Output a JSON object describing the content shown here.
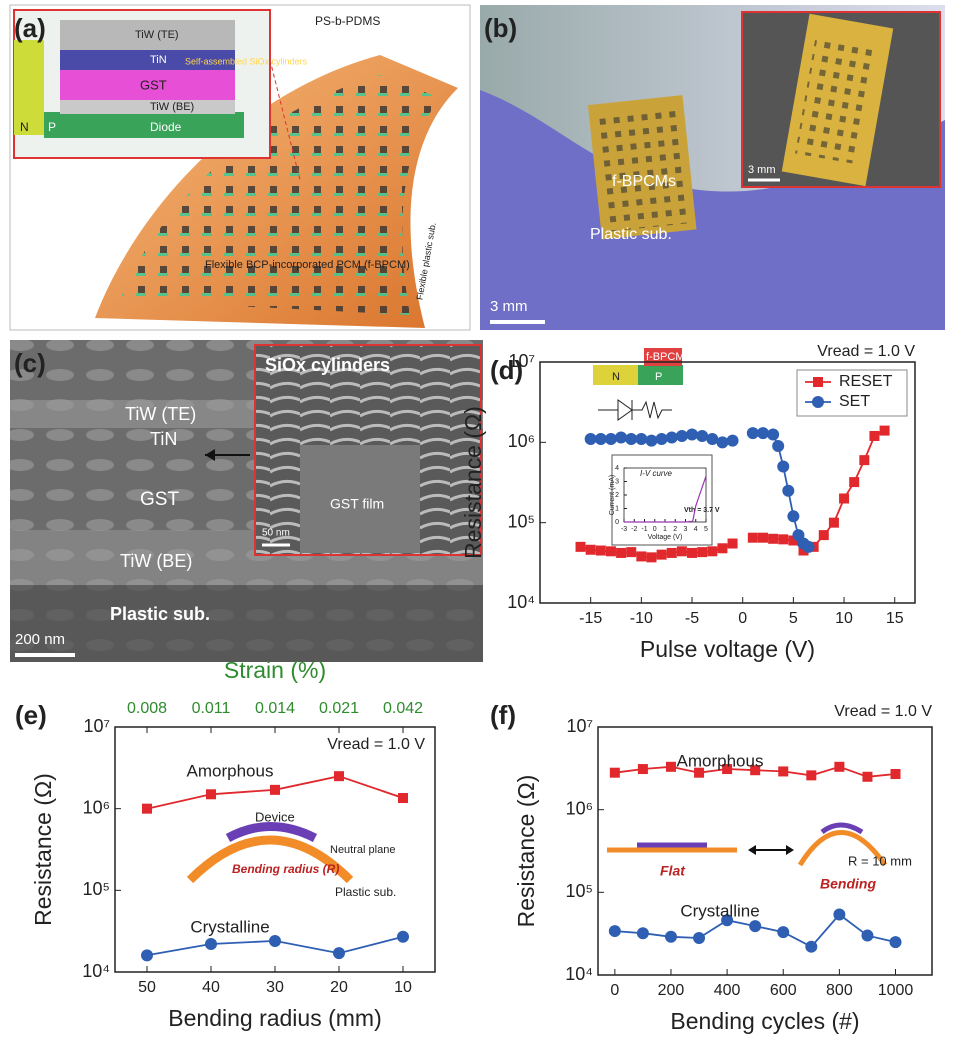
{
  "figure": {
    "a": {
      "label": "(a)",
      "polymer": "PS-b-PDMS",
      "layers": [
        "TiW (TE)",
        "TiN",
        "GST",
        "TiW (BE)",
        "Diode"
      ],
      "cylinders": "Self-assembled SiOx cylinders",
      "n": "N",
      "p": "P",
      "device": "Flexible BCP-incorporated PCM (f-BPCM)",
      "substrate": "Flexible plastic sub."
    },
    "b": {
      "label": "(b)",
      "device": "f-BPCMs",
      "substrate": "Plastic sub.",
      "scale": "3 mm",
      "inset_scale": "3 mm"
    },
    "c": {
      "label": "(c)",
      "inset_title": "SiOx cylinders",
      "layers": [
        "TiW (TE)",
        "TiN",
        "GST",
        "TiW (BE)",
        "Plastic sub."
      ],
      "scale": "200 nm",
      "inset_label": "GST film",
      "inset_scale": "50 nm"
    }
  },
  "chart_data": [
    {
      "type": "line",
      "panel_label": "(d)",
      "xlabel": "Pulse voltage (V)",
      "ylabel": "Resistance (Ω)",
      "condition": "Vread = 1.0 V",
      "scale": "log",
      "legend": "upper right",
      "xlim": [
        -20,
        17
      ],
      "xticks": [
        -15,
        -10,
        -5,
        0,
        5,
        10,
        15
      ],
      "ylim": [
        10000,
        10000000
      ],
      "yticks": [
        {
          "value": 10000,
          "label": "10⁴"
        },
        {
          "value": 100000,
          "label": "10⁵"
        },
        {
          "value": 1000000,
          "label": "10⁶"
        },
        {
          "value": 10000000,
          "label": "10⁷"
        }
      ],
      "diagram": {
        "n": "N",
        "p": "P",
        "device": "f-BPCM"
      },
      "series": [
        {
          "name": "RESET",
          "color": "#e0282d",
          "marker": "square",
          "x": [
            -16,
            -15,
            -14,
            -13,
            -12,
            -11,
            -10,
            -9,
            -8,
            -7,
            -6,
            -5,
            -4,
            -3,
            -2,
            -1,
            0,
            1,
            2,
            3,
            4,
            5,
            6,
            7,
            8,
            9,
            10,
            11,
            12,
            13,
            14
          ],
          "values": [
            50000,
            46000,
            45000,
            44000,
            42000,
            43000,
            38000,
            37000,
            40000,
            42000,
            44000,
            42000,
            43000,
            44000,
            48000,
            55000,
            null,
            65000,
            65000,
            63000,
            62000,
            60000,
            45000,
            50000,
            70000,
            100000,
            200000,
            320000,
            600000,
            1200000,
            1400000
          ]
        },
        {
          "name": "SET",
          "color": "#2f5fb3",
          "marker": "circle",
          "x": [
            -15,
            -14,
            -13,
            -12,
            -11,
            -10,
            -9,
            -8,
            -7,
            -6,
            -5,
            -4,
            -3,
            -2,
            -1,
            0,
            1,
            2,
            3,
            3.5,
            4,
            4.5,
            5,
            5.5,
            6,
            6.5
          ],
          "values": [
            1100000,
            1100000,
            1100000,
            1150000,
            1100000,
            1100000,
            1050000,
            1100000,
            1150000,
            1200000,
            1250000,
            1200000,
            1100000,
            1000000,
            1050000,
            null,
            1300000,
            1300000,
            1250000,
            900000,
            500000,
            250000,
            120000,
            70000,
            55000,
            50000
          ]
        }
      ]
    },
    {
      "type": "line",
      "title": "I-V curve",
      "xlabel": "Voltage (V)",
      "ylabel": "Current (mA)",
      "annotation": "Vth = 3.7 V",
      "xlim": [
        -3,
        5
      ],
      "xticks": [
        -3,
        -2,
        -1,
        0,
        1,
        2,
        3,
        4,
        5
      ],
      "ylim": [
        0,
        4
      ],
      "yticks": [
        0,
        1,
        2,
        3,
        4
      ],
      "color": "#9b35b5",
      "x": [
        -3,
        -2,
        -1,
        0,
        1,
        2,
        3,
        3.7,
        4,
        4.5,
        5
      ],
      "values": [
        0,
        0,
        0,
        0,
        0,
        0,
        0,
        0.05,
        1.2,
        2.3,
        3.4
      ]
    },
    {
      "type": "line",
      "panel_label": "(e)",
      "xlabel": "Bending radius (mm)",
      "ylabel": "Resistance (Ω)",
      "x2label": "Strain (%)",
      "x2color": "#2e8b2e",
      "condition": "Vread = 1.0 V",
      "scale": "log",
      "xlim": [
        55,
        5
      ],
      "xticks": [
        50,
        40,
        30,
        20,
        10
      ],
      "x2ticks": [
        {
          "value": 50,
          "label": "0.008"
        },
        {
          "value": 40,
          "label": "0.011"
        },
        {
          "value": 30,
          "label": "0.014"
        },
        {
          "value": 20,
          "label": "0.021"
        },
        {
          "value": 10,
          "label": "0.042"
        }
      ],
      "ylim": [
        10000,
        10000000
      ],
      "yticks": [
        {
          "value": 10000,
          "label": "10⁴"
        },
        {
          "value": 100000,
          "label": "10⁵"
        },
        {
          "value": 1000000,
          "label": "10⁶"
        },
        {
          "value": 10000000,
          "label": "10⁷"
        }
      ],
      "diagram": {
        "device": "Device",
        "neutral": "Neutral plane",
        "radius": "Bending radius (R)",
        "substrate": "Plastic sub."
      },
      "x": [
        50,
        40,
        30,
        20,
        10
      ],
      "series": [
        {
          "name": "Amorphous",
          "color": "#e0282d",
          "marker": "square",
          "values": [
            1000000,
            1500000,
            1700000,
            2500000,
            1350000
          ]
        },
        {
          "name": "Crystalline",
          "color": "#2f5fb3",
          "marker": "circle",
          "values": [
            16000,
            22000,
            24000,
            17000,
            27000
          ]
        }
      ]
    },
    {
      "type": "line",
      "panel_label": "(f)",
      "xlabel": "Bending cycles (#)",
      "ylabel": "Resistance (Ω)",
      "condition": "Vread = 1.0 V",
      "scale": "log",
      "xlim": [
        -60,
        1130
      ],
      "xticks": [
        0,
        200,
        400,
        600,
        800,
        1000
      ],
      "ylim": [
        10000,
        10000000
      ],
      "yticks": [
        {
          "value": 10000,
          "label": "10⁴"
        },
        {
          "value": 100000,
          "label": "10⁵"
        },
        {
          "value": 1000000,
          "label": "10⁶"
        },
        {
          "value": 10000000,
          "label": "10⁷"
        }
      ],
      "diagram": {
        "flat": "Flat",
        "bending": "Bending",
        "radius": "R = 10 mm"
      },
      "x": [
        0,
        100,
        200,
        300,
        400,
        500,
        600,
        700,
        800,
        900,
        1000
      ],
      "series": [
        {
          "name": "Amorphous",
          "color": "#e0282d",
          "marker": "square",
          "values": [
            2800000,
            3100000,
            3300000,
            2800000,
            3100000,
            3000000,
            2900000,
            2600000,
            3300000,
            2500000,
            2700000
          ]
        },
        {
          "name": "Crystalline",
          "color": "#2f5fb3",
          "marker": "circle",
          "values": [
            34000,
            32000,
            29000,
            28000,
            46000,
            39000,
            33000,
            22000,
            54000,
            30000,
            25000
          ]
        }
      ]
    }
  ]
}
